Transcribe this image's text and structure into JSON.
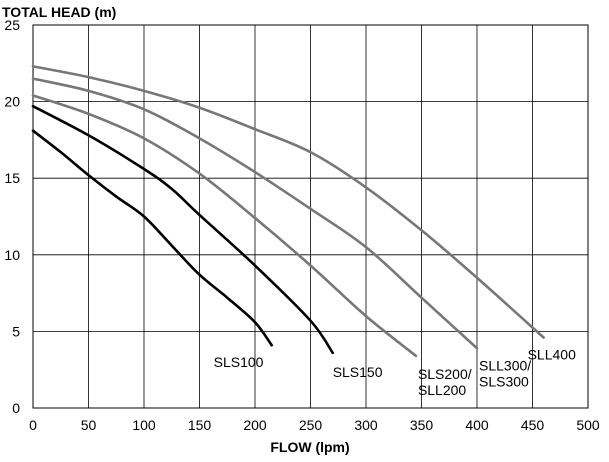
{
  "chart_data": {
    "type": "line",
    "title": "TOTAL HEAD (m)",
    "xlabel": "FLOW (lpm)",
    "ylabel": "",
    "xlim": [
      0,
      500
    ],
    "ylim": [
      0,
      25
    ],
    "xticks": [
      0,
      50,
      100,
      150,
      200,
      250,
      300,
      350,
      400,
      450,
      500
    ],
    "yticks": [
      0,
      5,
      10,
      15,
      20,
      25
    ],
    "grid": true,
    "legend": "none",
    "series": [
      {
        "name": "SLS100",
        "color": "#000000",
        "label_lines": [
          "SLS100"
        ],
        "points": [
          [
            0,
            18.1
          ],
          [
            25,
            16.7
          ],
          [
            50,
            15.2
          ],
          [
            75,
            13.8
          ],
          [
            100,
            12.5
          ],
          [
            125,
            10.6
          ],
          [
            150,
            8.7
          ],
          [
            175,
            7.2
          ],
          [
            200,
            5.6
          ],
          [
            215,
            4.1
          ]
        ]
      },
      {
        "name": "SLS150",
        "color": "#000000",
        "label_lines": [
          "SLS150"
        ],
        "points": [
          [
            0,
            19.7
          ],
          [
            50,
            17.8
          ],
          [
            100,
            15.6
          ],
          [
            125,
            14.3
          ],
          [
            150,
            12.6
          ],
          [
            200,
            9.3
          ],
          [
            250,
            5.7
          ],
          [
            270,
            3.6
          ]
        ]
      },
      {
        "name": "SLS200/SLL200",
        "color": "#777777",
        "label_lines": [
          "SLS200/",
          "SLL200"
        ],
        "points": [
          [
            0,
            20.4
          ],
          [
            50,
            19.2
          ],
          [
            100,
            17.6
          ],
          [
            150,
            15.3
          ],
          [
            200,
            12.4
          ],
          [
            250,
            9.3
          ],
          [
            300,
            6.0
          ],
          [
            345,
            3.4
          ]
        ]
      },
      {
        "name": "SLL300/SLS300",
        "color": "#777777",
        "label_lines": [
          "SLL300/",
          "SLS300"
        ],
        "points": [
          [
            0,
            21.5
          ],
          [
            50,
            20.7
          ],
          [
            100,
            19.5
          ],
          [
            150,
            17.6
          ],
          [
            200,
            15.4
          ],
          [
            250,
            13.0
          ],
          [
            300,
            10.5
          ],
          [
            350,
            7.2
          ],
          [
            400,
            3.9
          ]
        ]
      },
      {
        "name": "SLL400",
        "color": "#777777",
        "label_lines": [
          "SLL400"
        ],
        "points": [
          [
            0,
            22.3
          ],
          [
            50,
            21.6
          ],
          [
            100,
            20.7
          ],
          [
            150,
            19.6
          ],
          [
            200,
            18.2
          ],
          [
            250,
            16.7
          ],
          [
            300,
            14.4
          ],
          [
            350,
            11.6
          ],
          [
            400,
            8.5
          ],
          [
            460,
            4.6
          ]
        ]
      }
    ]
  }
}
